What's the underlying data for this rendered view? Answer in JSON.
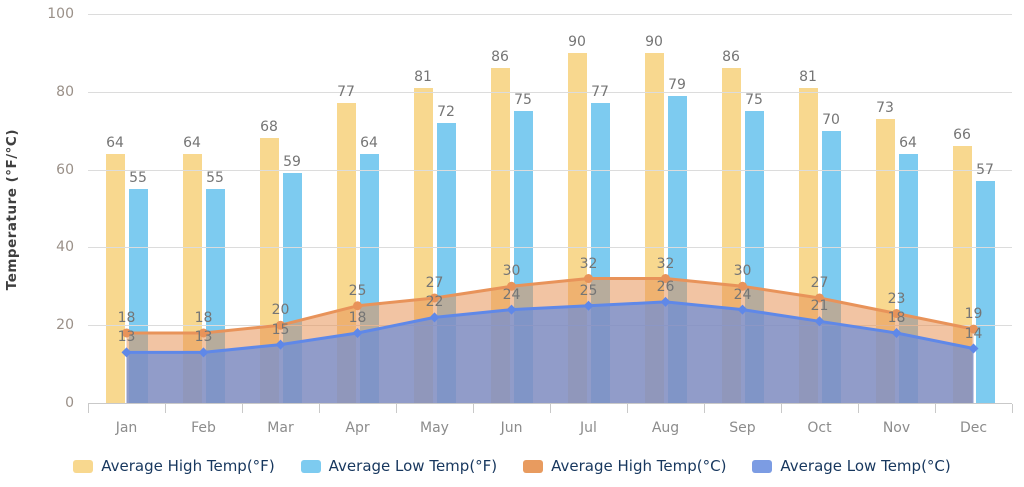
{
  "chart_data": {
    "type": "bar",
    "title": "",
    "xlabel": "",
    "ylabel": "Temperature (°F/°C)",
    "ylim": [
      0,
      100
    ],
    "yticks": [
      0,
      20,
      40,
      60,
      80,
      100
    ],
    "grid": true,
    "legend_position": "bottom",
    "categories": [
      "Jan",
      "Feb",
      "Mar",
      "Apr",
      "May",
      "Jun",
      "Jul",
      "Aug",
      "Sep",
      "Oct",
      "Nov",
      "Dec"
    ],
    "series": [
      {
        "name": "Average High Temp(°F)",
        "type": "bar",
        "color": "#F8D88F",
        "swatch": "#F8D88F",
        "values": [
          64,
          64,
          68,
          77,
          81,
          86,
          90,
          90,
          86,
          81,
          73,
          66
        ]
      },
      {
        "name": "Average Low Temp(°F)",
        "type": "bar",
        "color": "#7DCBF0",
        "swatch": "#7DCBF0",
        "values": [
          55,
          55,
          59,
          64,
          72,
          75,
          77,
          79,
          75,
          70,
          64,
          57
        ]
      },
      {
        "name": "Average High Temp(°C)",
        "type": "area",
        "color": "#E8935A",
        "swatch": "#E89B5F",
        "fill": "rgba(232,148,87,0.55)",
        "marker": "circle",
        "values": [
          18,
          18,
          20,
          25,
          27,
          30,
          32,
          32,
          30,
          27,
          23,
          19
        ]
      },
      {
        "name": "Average Low Temp(°C)",
        "type": "area",
        "color": "#5F88E8",
        "swatch": "#7C9CE3",
        "fill": "rgba(107,140,216,0.72)",
        "marker": "diamond",
        "values": [
          13,
          13,
          15,
          18,
          22,
          24,
          25,
          26,
          24,
          21,
          18,
          14
        ]
      }
    ]
  },
  "styles": {
    "background": "#FFFFFF",
    "grid_color": "#DCDCDC",
    "axis_color": "#C9C9C9",
    "ytick_label_color": "#9A9088",
    "month_label_color": "#8C8C8C",
    "value_label_color": "#757575",
    "legend_text_color": "#17375E"
  }
}
